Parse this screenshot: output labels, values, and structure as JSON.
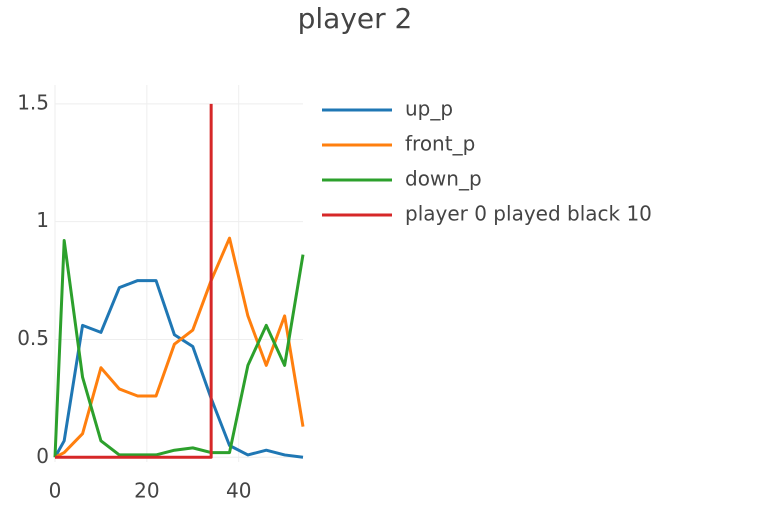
{
  "chart_data": {
    "type": "line",
    "title": "player 2",
    "xlim": [
      0,
      54
    ],
    "ylim": [
      -0.02,
      1.58
    ],
    "xticks": [
      0,
      20,
      40
    ],
    "yticks": [
      0,
      0.5,
      1,
      1.5
    ],
    "grid": true,
    "series": [
      {
        "name": "up_p",
        "color": "#1f77b4",
        "x": [
          0,
          2,
          6,
          10,
          14,
          18,
          22,
          26,
          30,
          34,
          38,
          42,
          46,
          50,
          54
        ],
        "values": [
          0,
          0.07,
          0.56,
          0.53,
          0.72,
          0.75,
          0.75,
          0.52,
          0.47,
          0.25,
          0.05,
          0.01,
          0.03,
          0.01,
          0
        ]
      },
      {
        "name": "front_p",
        "color": "#ff7f0e",
        "x": [
          0,
          2,
          6,
          10,
          14,
          18,
          22,
          26,
          30,
          34,
          38,
          42,
          46,
          50,
          54
        ],
        "values": [
          0,
          0.02,
          0.1,
          0.38,
          0.29,
          0.26,
          0.26,
          0.48,
          0.54,
          0.75,
          0.93,
          0.6,
          0.39,
          0.6,
          0.13
        ]
      },
      {
        "name": "down_p",
        "color": "#2ca02c",
        "x": [
          0,
          2,
          6,
          10,
          14,
          18,
          22,
          26,
          30,
          34,
          38,
          42,
          46,
          50,
          54
        ],
        "values": [
          0,
          0.92,
          0.34,
          0.07,
          0.01,
          0.01,
          0.01,
          0.03,
          0.04,
          0.02,
          0.02,
          0.39,
          0.56,
          0.39,
          0.86
        ]
      },
      {
        "name": "player 0 played black 10",
        "color": "#d62728",
        "x": [
          0,
          34,
          34
        ],
        "values": [
          0,
          0,
          1.5
        ]
      }
    ]
  }
}
